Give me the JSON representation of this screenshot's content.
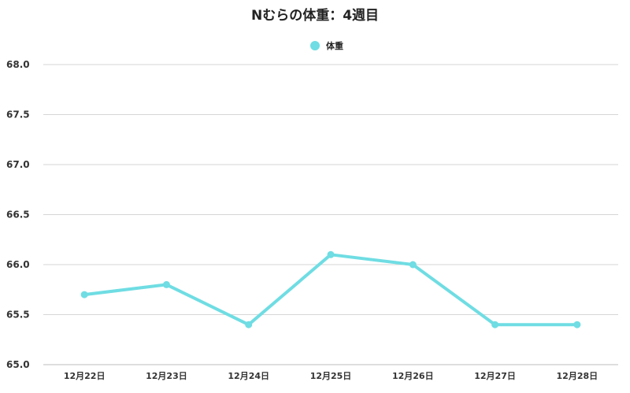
{
  "chart_data": {
    "type": "line",
    "title": "Nむらの体重：4週目",
    "categories": [
      "12月22日",
      "12月23日",
      "12月24日",
      "12月25日",
      "12月26日",
      "12月27日",
      "12月28日"
    ],
    "series": [
      {
        "name": "体重",
        "values": [
          65.7,
          65.8,
          65.4,
          66.1,
          66.0,
          65.4,
          65.4
        ],
        "color": "#6fdde3"
      }
    ],
    "ylim": [
      65.0,
      68.0
    ],
    "y_ticks": [
      65.0,
      65.5,
      66.0,
      66.5,
      67.0,
      67.5,
      68.0
    ],
    "y_tick_labels": [
      "65.0",
      "65.5",
      "66.0",
      "66.5",
      "67.0",
      "67.5",
      "68.0"
    ],
    "legend_position": "top-center",
    "grid": true
  }
}
